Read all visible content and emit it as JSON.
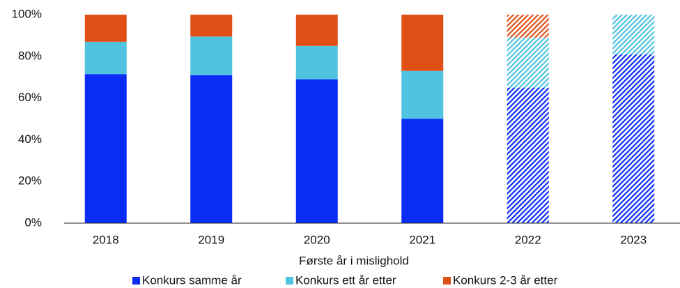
{
  "chart_data": {
    "type": "stacked_bar",
    "x_label": "Første år i mislighold",
    "categories": [
      "2018",
      "2019",
      "2020",
      "2021",
      "2022",
      "2023"
    ],
    "series": [
      {
        "name": "Konkurs samme år",
        "color": "#0a2cf5",
        "values": [
          71.5,
          71,
          69,
          50,
          65,
          81
        ]
      },
      {
        "name": "Konkurs ett år etter",
        "color": "#4fc3e0",
        "values": [
          15.5,
          18.5,
          16,
          23,
          24,
          19
        ]
      },
      {
        "name": "Konkurs 2-3 år etter",
        "color": "#e05016",
        "values": [
          13,
          10.5,
          15,
          27,
          11,
          0
        ]
      }
    ],
    "hatched": [
      false,
      false,
      false,
      false,
      true,
      true
    ],
    "ylim": [
      0,
      100
    ],
    "yticks": [
      {
        "value": 0,
        "label": "0%"
      },
      {
        "value": 20,
        "label": "20%"
      },
      {
        "value": 40,
        "label": "40%"
      },
      {
        "value": 60,
        "label": "60%"
      },
      {
        "value": 80,
        "label": "80%"
      },
      {
        "value": 100,
        "label": "100%"
      }
    ],
    "grid": false,
    "legend": "bottom"
  }
}
